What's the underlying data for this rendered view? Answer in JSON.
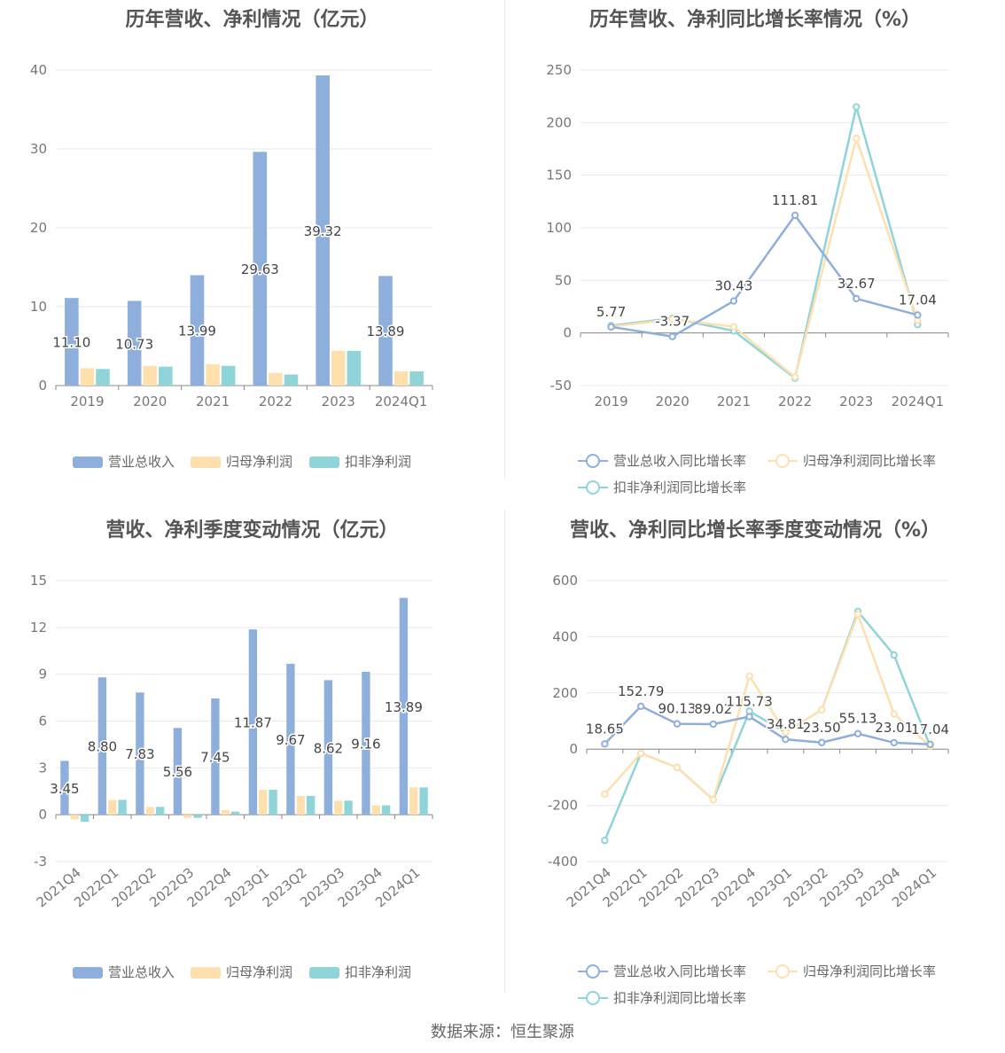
{
  "source": "数据来源：恒生聚源",
  "colors": {
    "revenue": "#8eaedc",
    "netprofit": "#fde0ad",
    "deducted": "#8fd4d8",
    "grid": "#e6e9f0",
    "axis": "#999999"
  },
  "legend_bar": [
    "营业总收入",
    "归母净利润",
    "扣非净利润"
  ],
  "legend_line": [
    "营业总收入同比增长率",
    "归母净利润同比增长率",
    "扣非净利润同比增长率"
  ],
  "chart_data": [
    {
      "id": "annual-bar",
      "type": "bar",
      "title": "历年营收、净利情况（亿元）",
      "categories": [
        "2019",
        "2020",
        "2021",
        "2022",
        "2023",
        "2024Q1"
      ],
      "ylim": [
        0,
        40
      ],
      "yticks": [
        0,
        10,
        20,
        30,
        40
      ],
      "series": [
        {
          "name": "营业总收入",
          "values": [
            11.1,
            10.73,
            13.99,
            29.63,
            39.32,
            13.89
          ],
          "labels": [
            "11.10",
            "10.73",
            "13.99",
            "29.63",
            "39.32",
            "13.89"
          ]
        },
        {
          "name": "归母净利润",
          "values": [
            2.2,
            2.5,
            2.7,
            1.6,
            4.4,
            1.8
          ]
        },
        {
          "name": "扣非净利润",
          "values": [
            2.1,
            2.4,
            2.5,
            1.4,
            4.4,
            1.8
          ]
        }
      ],
      "legend": "bottom"
    },
    {
      "id": "annual-line",
      "type": "line",
      "title": "历年营收、净利同比增长率情况（%）",
      "categories": [
        "2019",
        "2020",
        "2021",
        "2022",
        "2023",
        "2024Q1"
      ],
      "ylim": [
        -50,
        250
      ],
      "yticks": [
        -50,
        0,
        50,
        100,
        150,
        200,
        250
      ],
      "series": [
        {
          "name": "营业总收入同比增长率",
          "values": [
            5.77,
            -3.37,
            30.43,
            111.81,
            32.67,
            17.04
          ],
          "labels": [
            "5.77",
            "-3.37",
            "30.43",
            "111.81",
            "32.67",
            "17.04"
          ]
        },
        {
          "name": "归母净利润同比增长率",
          "values": [
            6,
            13,
            6,
            -42,
            185,
            12
          ]
        },
        {
          "name": "扣非净利润同比增长率",
          "values": [
            7,
            14,
            2,
            -43,
            215,
            8
          ]
        }
      ],
      "legend": "bottom"
    },
    {
      "id": "quarterly-bar",
      "type": "bar",
      "title": "营收、净利季度变动情况（亿元）",
      "categories": [
        "2021Q4",
        "2022Q1",
        "2022Q2",
        "2022Q3",
        "2022Q4",
        "2023Q1",
        "2023Q2",
        "2023Q3",
        "2023Q4",
        "2024Q1"
      ],
      "ylim": [
        -3,
        15
      ],
      "yticks": [
        -3,
        0,
        3,
        6,
        9,
        12,
        15
      ],
      "series": [
        {
          "name": "营业总收入",
          "values": [
            3.45,
            8.8,
            7.83,
            5.56,
            7.45,
            11.87,
            9.67,
            8.62,
            9.16,
            13.89
          ],
          "labels": [
            "3.45",
            "8.80",
            "7.83",
            "5.56",
            "7.45",
            "11.87",
            "9.67",
            "8.62",
            "9.16",
            "13.89"
          ]
        },
        {
          "name": "归母净利润",
          "values": [
            -0.3,
            0.95,
            0.5,
            -0.2,
            0.3,
            1.6,
            1.2,
            0.9,
            0.6,
            1.75
          ]
        },
        {
          "name": "扣非净利润",
          "values": [
            -0.45,
            0.95,
            0.5,
            -0.2,
            0.2,
            1.6,
            1.2,
            0.9,
            0.6,
            1.75
          ]
        }
      ],
      "legend": "bottom"
    },
    {
      "id": "quarterly-line",
      "type": "line",
      "title": "营收、净利同比增长率季度变动情况（%）",
      "categories": [
        "2021Q4",
        "2022Q1",
        "2022Q2",
        "2022Q3",
        "2022Q4",
        "2023Q1",
        "2023Q2",
        "2023Q3",
        "2023Q4",
        "2024Q1"
      ],
      "ylim": [
        -400,
        600
      ],
      "yticks": [
        -400,
        -200,
        0,
        200,
        400,
        600
      ],
      "series": [
        {
          "name": "营业总收入同比增长率",
          "values": [
            18.65,
            152.79,
            90.13,
            89.02,
            115.73,
            34.81,
            23.5,
            55.13,
            23.01,
            17.04
          ],
          "labels": [
            "18.65",
            "152.79",
            "90.13",
            "89.02",
            "115.73",
            "34.81",
            "23.50",
            "55.13",
            "23.01",
            "17.04"
          ]
        },
        {
          "name": "归母净利润同比增长率",
          "values": [
            -160,
            -15,
            -65,
            -180,
            260,
            60,
            140,
            480,
            125,
            10
          ]
        },
        {
          "name": "扣非净利润同比增长率",
          "values": [
            -325,
            -15,
            -65,
            -180,
            135,
            60,
            140,
            490,
            335,
            10
          ]
        }
      ],
      "legend": "bottom"
    }
  ]
}
